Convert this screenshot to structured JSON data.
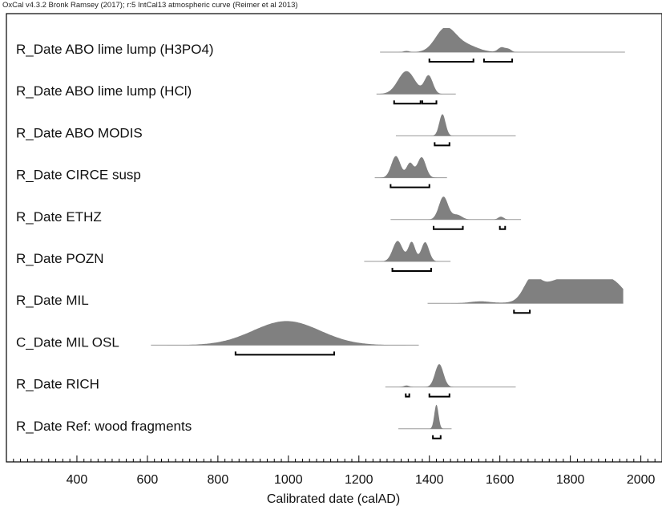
{
  "header": {
    "text": "OxCal v4.3.2 Bronk Ramsey (2017); r:5 IntCal13 atmospheric curve (Reimer et al 2013)"
  },
  "colors": {
    "fill": "#808080",
    "line": "#999999",
    "axis": "#000000",
    "bracket": "#000000"
  },
  "chart_data": {
    "type": "area",
    "title": "",
    "xlabel": "Calibrated date (calAD)",
    "ylabel": "",
    "xlim": [
      200,
      2060
    ],
    "xticks": [
      400,
      600,
      800,
      1000,
      1200,
      1400,
      1600,
      1800,
      2000
    ],
    "minor_tick_step": 20,
    "series": [
      {
        "name": "R_Date ABO lime lump (H3PO4)",
        "line": [
          1260,
          1955
        ],
        "peaks": [
          [
            1445,
            28,
            0.95
          ],
          [
            1500,
            35,
            0.3
          ],
          [
            1335,
            8,
            0.05
          ],
          [
            1605,
            10,
            0.2
          ],
          [
            1625,
            8,
            0.12
          ]
        ],
        "ranges": [
          [
            1400,
            1525
          ],
          [
            1555,
            1635
          ]
        ]
      },
      {
        "name": "R_Date ABO lime lump (HCl)",
        "line": [
          1250,
          1475
        ],
        "peaks": [
          [
            1335,
            24,
            0.95
          ],
          [
            1398,
            12,
            0.75
          ]
        ],
        "ranges": [
          [
            1300,
            1375
          ],
          [
            1380,
            1420
          ]
        ]
      },
      {
        "name": "R_Date ABO MODIS",
        "line": [
          1305,
          1645
        ],
        "peaks": [
          [
            1437,
            9,
            0.9
          ]
        ],
        "ranges": [
          [
            1415,
            1457
          ]
        ]
      },
      {
        "name": "R_Date CIRCE susp",
        "line": [
          1245,
          1450
        ],
        "peaks": [
          [
            1305,
            13,
            0.9
          ],
          [
            1345,
            10,
            0.6
          ],
          [
            1378,
            12,
            0.85
          ]
        ],
        "ranges": [
          [
            1290,
            1400
          ]
        ]
      },
      {
        "name": "R_Date ETHZ",
        "line": [
          1290,
          1660
        ],
        "peaks": [
          [
            1440,
            13,
            0.95
          ],
          [
            1478,
            14,
            0.2
          ],
          [
            1603,
            8,
            0.12
          ]
        ],
        "ranges": [
          [
            1412,
            1495
          ],
          [
            1600,
            1615
          ]
        ]
      },
      {
        "name": "R_Date POZN",
        "line": [
          1215,
          1460
        ],
        "peaks": [
          [
            1310,
            14,
            0.85
          ],
          [
            1350,
            10,
            0.8
          ],
          [
            1388,
            11,
            0.8
          ]
        ],
        "ranges": [
          [
            1295,
            1405
          ]
        ]
      },
      {
        "name": "R_Date MIL",
        "line": [
          1395,
          1950
        ],
        "peaks": [
          [
            1545,
            30,
            0.08
          ],
          [
            1690,
            22,
            0.75
          ],
          [
            1760,
            55,
            0.85
          ],
          [
            1845,
            45,
            0.82
          ],
          [
            1920,
            35,
            0.78
          ]
        ],
        "ranges": [
          [
            1640,
            1685
          ]
        ]
      },
      {
        "name": "C_Date MIL OSL",
        "line": [
          610,
          1370
        ],
        "peaks": [
          [
            995,
            95,
            1.0
          ]
        ],
        "ranges": [
          [
            850,
            1130
          ]
        ]
      },
      {
        "name": "R_Date RICH",
        "line": [
          1275,
          1645
        ],
        "peaks": [
          [
            1428,
            12,
            0.95
          ],
          [
            1335,
            8,
            0.06
          ]
        ],
        "ranges": [
          [
            1333,
            1343
          ],
          [
            1400,
            1457
          ]
        ]
      },
      {
        "name": "R_Date Ref: wood fragments",
        "line": [
          1312,
          1463
        ],
        "peaks": [
          [
            1420,
            6,
            1.0
          ]
        ],
        "ranges": [
          [
            1410,
            1432
          ]
        ]
      }
    ]
  }
}
